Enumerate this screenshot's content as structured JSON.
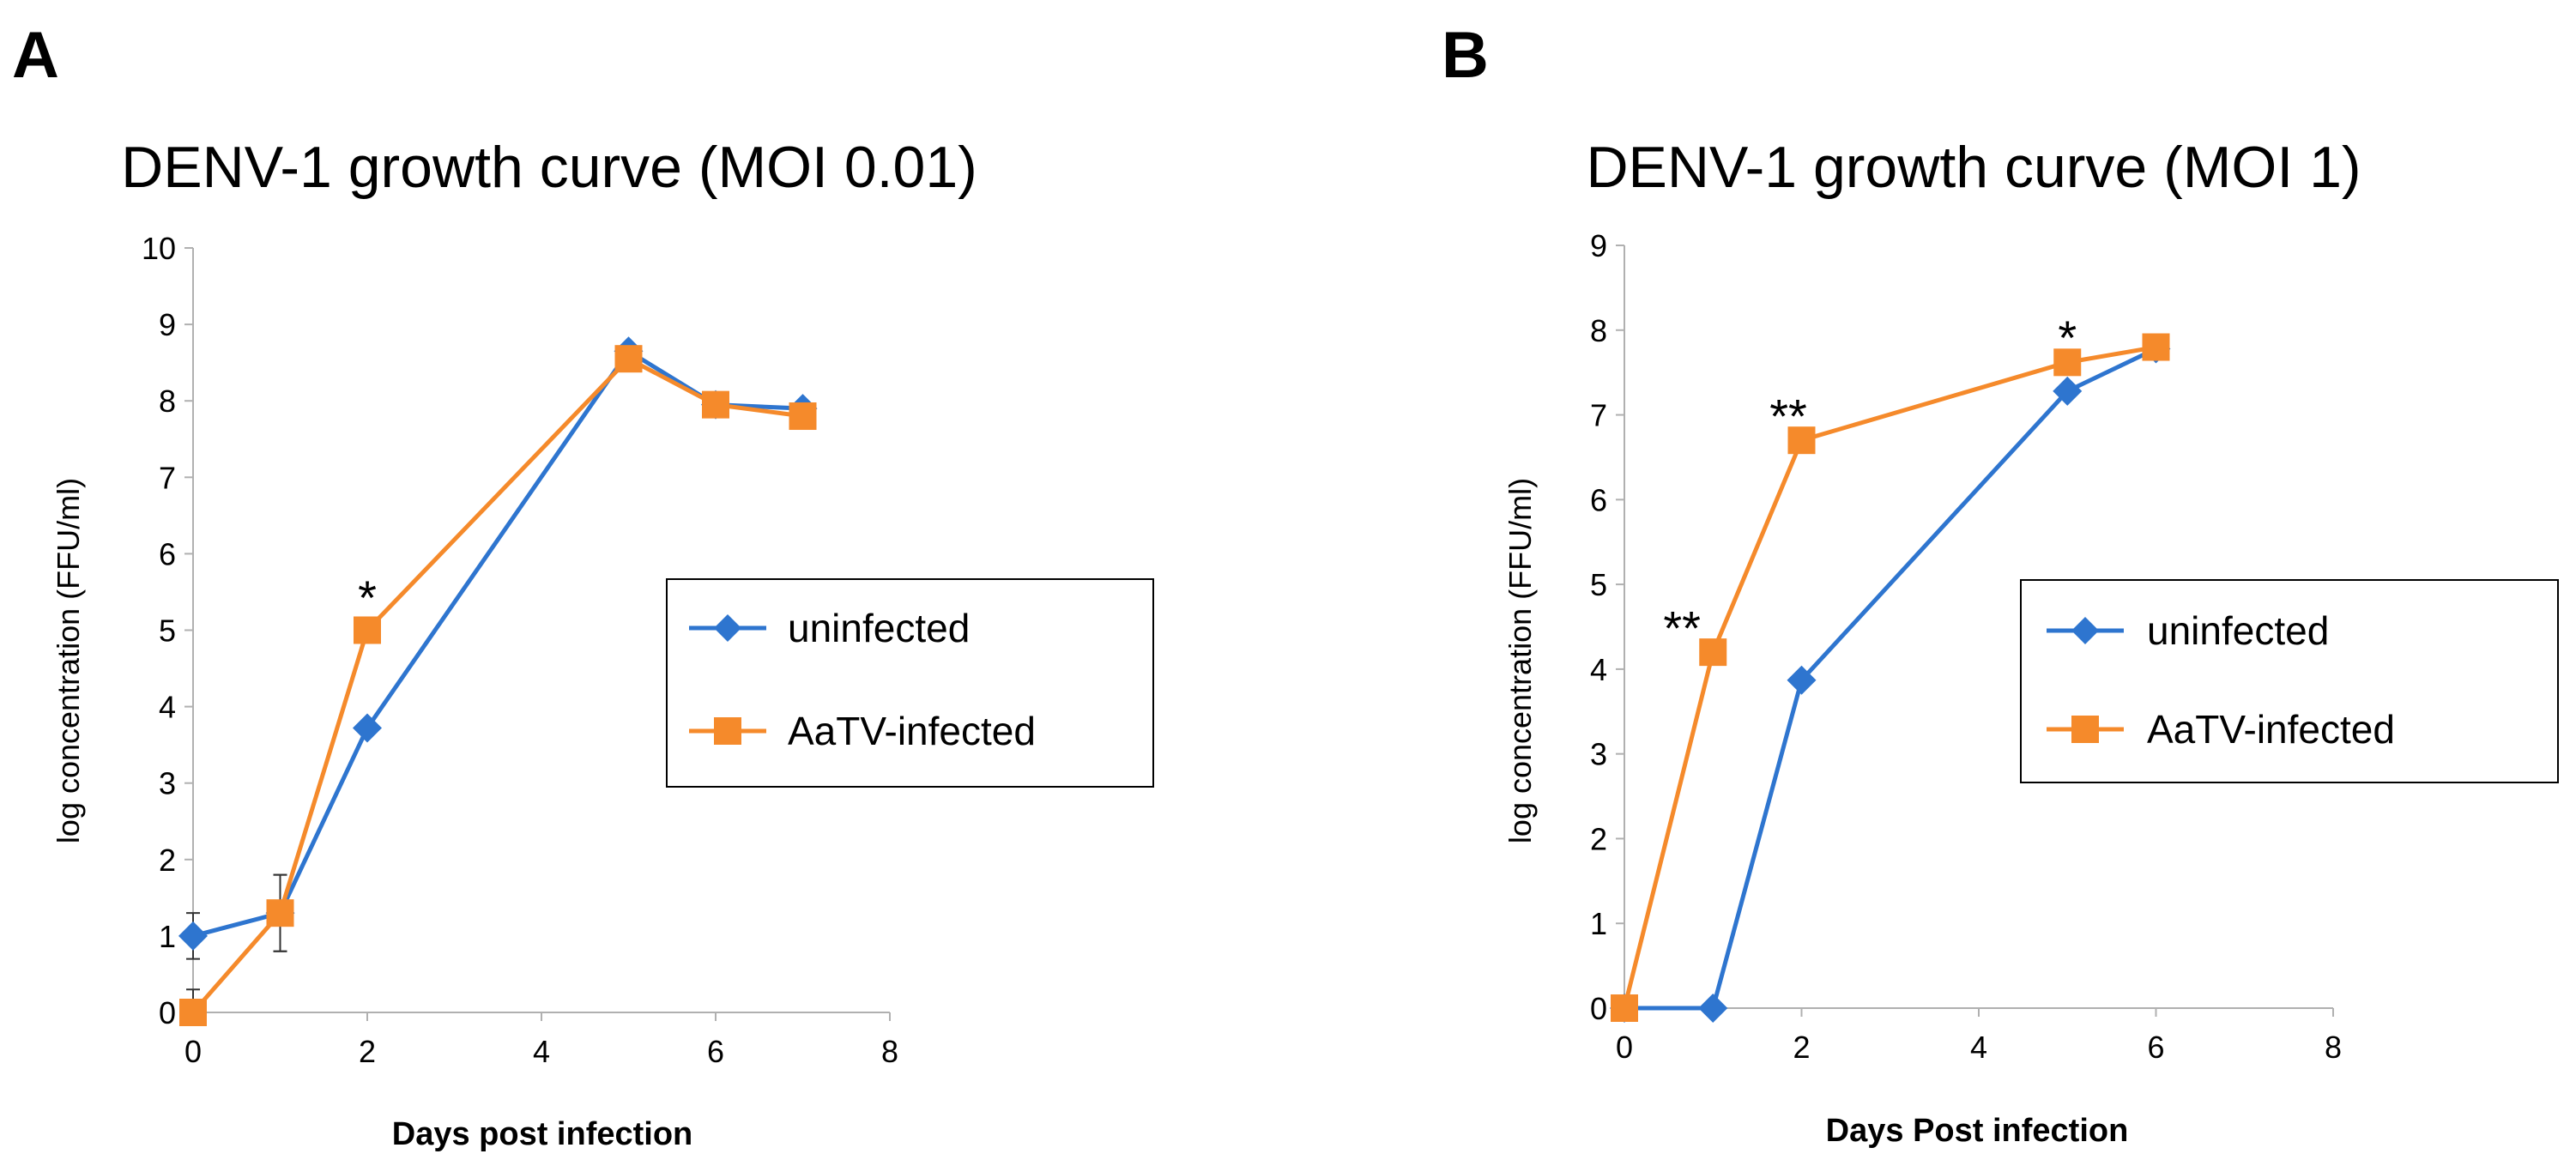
{
  "colors": {
    "uninfected": "#2e75cf",
    "aatv": "#f58a2b",
    "axis": "#b0b0b0"
  },
  "chart_data": [
    {
      "panel": "A",
      "type": "line",
      "title": "DENV-1 growth curve (MOI 0.01)",
      "xlabel": "Days post infection",
      "ylabel": "log concentration (FFU/ml)",
      "xlim": [
        0,
        8
      ],
      "ylim": [
        0,
        10
      ],
      "xticks": [
        0,
        2,
        4,
        6,
        8
      ],
      "yticks": [
        0,
        1,
        2,
        3,
        4,
        5,
        6,
        7,
        8,
        9,
        10
      ],
      "grid": false,
      "legend_placement": "center-right",
      "series": [
        {
          "name": "uninfected",
          "marker": "diamond",
          "x": [
            0,
            1,
            2,
            5,
            6,
            7
          ],
          "y": [
            1.0,
            1.3,
            3.72,
            8.65,
            7.95,
            7.9
          ],
          "err": [
            0.3,
            0.5,
            0,
            0,
            0,
            0
          ]
        },
        {
          "name": "AaTV-infected",
          "marker": "square",
          "x": [
            0,
            1,
            2,
            5,
            6,
            7
          ],
          "y": [
            0.0,
            1.3,
            5.0,
            8.55,
            7.95,
            7.8
          ],
          "err": [
            0.3,
            0.5,
            0,
            0,
            0,
            0
          ]
        }
      ],
      "annotations": [
        {
          "text": "*",
          "x": 2,
          "y": 5.5
        }
      ]
    },
    {
      "panel": "B",
      "type": "line",
      "title": "DENV-1 growth curve (MOI 1)",
      "xlabel": "Days Post infection",
      "ylabel": "log concentration (FFU/ml)",
      "xlim": [
        0,
        8
      ],
      "ylim": [
        0,
        9
      ],
      "xticks": [
        0,
        2,
        4,
        6,
        8
      ],
      "yticks": [
        0,
        1,
        2,
        3,
        4,
        5,
        6,
        7,
        8,
        9
      ],
      "grid": false,
      "legend_placement": "center-right",
      "series": [
        {
          "name": "uninfected",
          "marker": "diamond",
          "x": [
            0,
            1,
            2,
            5,
            6
          ],
          "y": [
            0.0,
            0.0,
            3.87,
            7.28,
            7.78
          ],
          "err": [
            0,
            0,
            0,
            0,
            0
          ]
        },
        {
          "name": "AaTV-infected",
          "marker": "square",
          "x": [
            0,
            1,
            2,
            5,
            6
          ],
          "y": [
            0.0,
            4.2,
            6.7,
            7.62,
            7.8
          ],
          "err": [
            0,
            0,
            0,
            0,
            0
          ]
        }
      ],
      "annotations": [
        {
          "text": "**",
          "x": 0.65,
          "y": 4.55
        },
        {
          "text": "**",
          "x": 1.85,
          "y": 7.05
        },
        {
          "text": "*",
          "x": 5,
          "y": 7.98
        }
      ]
    }
  ]
}
